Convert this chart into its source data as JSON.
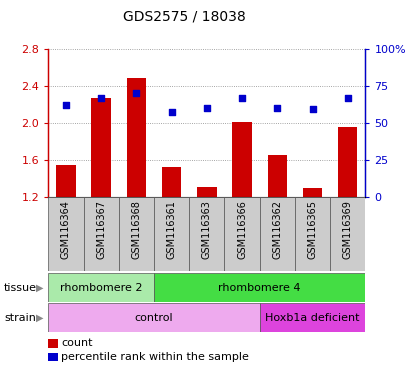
{
  "title": "GDS2575 / 18038",
  "samples": [
    "GSM116364",
    "GSM116367",
    "GSM116368",
    "GSM116361",
    "GSM116363",
    "GSM116366",
    "GSM116362",
    "GSM116365",
    "GSM116369"
  ],
  "counts": [
    1.54,
    2.27,
    2.48,
    1.52,
    1.3,
    2.01,
    1.65,
    1.29,
    1.95
  ],
  "percentiles": [
    62,
    67,
    70,
    57,
    60,
    67,
    60,
    59,
    67
  ],
  "ymin": 1.2,
  "ymax": 2.8,
  "yticks": [
    1.2,
    1.6,
    2.0,
    2.4,
    2.8
  ],
  "right_yticks": [
    0,
    25,
    50,
    75,
    100
  ],
  "right_yticklabels": [
    "0",
    "25",
    "50",
    "75",
    "100%"
  ],
  "bar_color": "#cc0000",
  "dot_color": "#0000cc",
  "bar_bottom": 1.2,
  "tissue_groups": [
    {
      "label": "rhombomere 2",
      "start": 0,
      "end": 3,
      "color": "#aaeaaa"
    },
    {
      "label": "rhombomere 4",
      "start": 3,
      "end": 9,
      "color": "#44dd44"
    }
  ],
  "strain_groups": [
    {
      "label": "control",
      "start": 0,
      "end": 6,
      "color": "#eeaaee"
    },
    {
      "label": "Hoxb1a deficient",
      "start": 6,
      "end": 9,
      "color": "#dd44dd"
    }
  ],
  "tissue_label": "tissue",
  "strain_label": "strain",
  "legend_count": "count",
  "legend_percentile": "percentile rank within the sample",
  "grid_color": "#888888",
  "tick_color_left": "#cc0000",
  "tick_color_right": "#0000cc",
  "sample_bg_color": "#cccccc",
  "plot_bg_color": "#ffffff"
}
